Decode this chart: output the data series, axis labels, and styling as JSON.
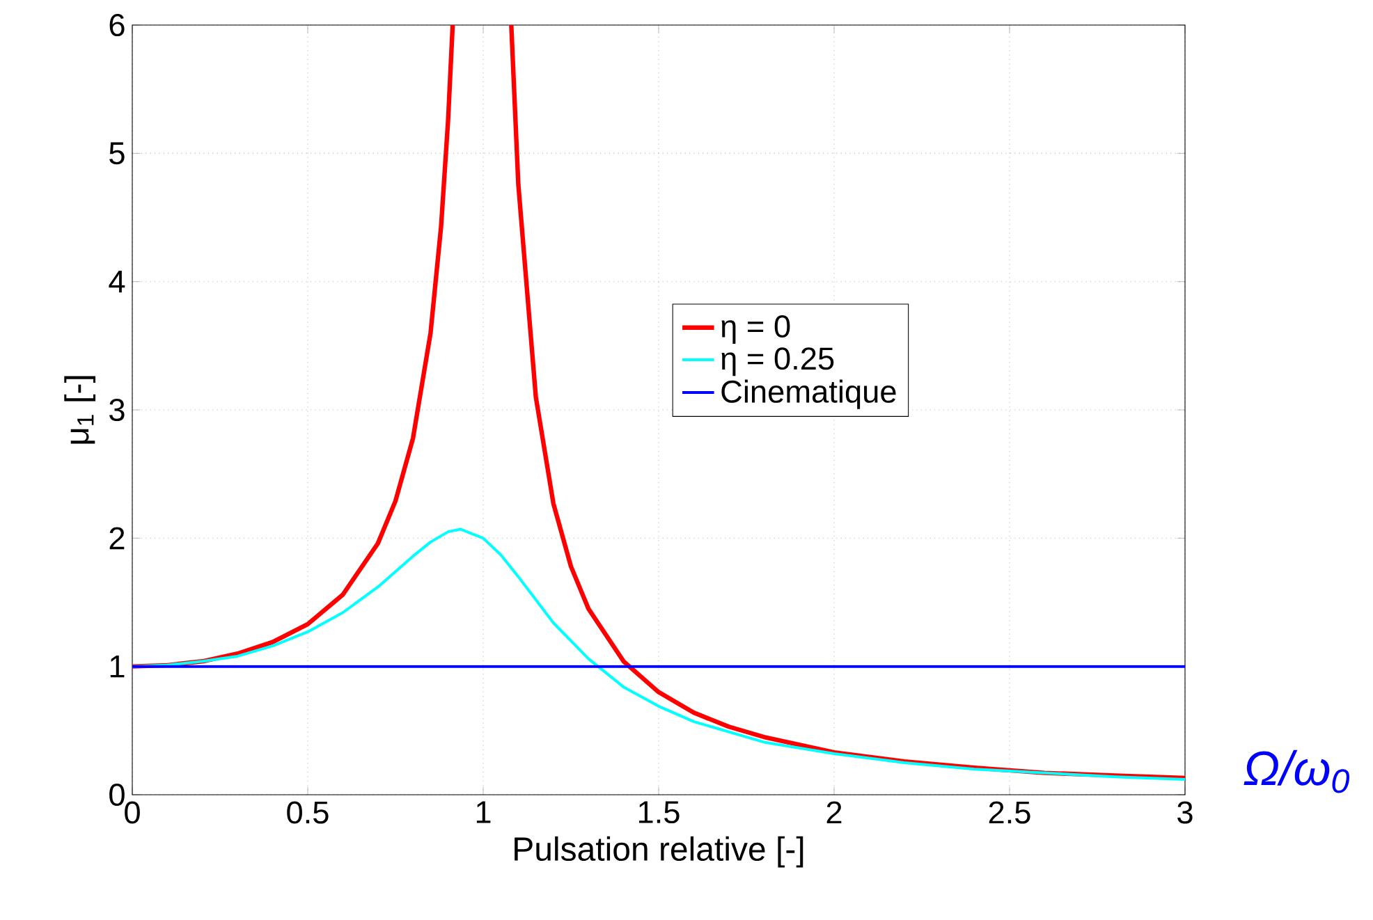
{
  "chart_data": {
    "type": "line",
    "xlabel": "Pulsation relative [-]",
    "ylabel": "μ$_{1}$ [-]",
    "xlim": [
      0,
      3
    ],
    "ylim": [
      0,
      6
    ],
    "xticks": [
      0,
      0.5,
      1,
      1.5,
      2,
      2.5,
      3
    ],
    "yticks": [
      0,
      1,
      2,
      3,
      4,
      5,
      6
    ],
    "grid": true,
    "legend": "right",
    "line_style": "solid",
    "marker": "none",
    "annotations": [
      "Ω/ω$_{0}$"
    ],
    "series": [
      {
        "name": "η = 0",
        "color": "#ff0000",
        "x": [
          0,
          0.1,
          0.2,
          0.3,
          0.4,
          0.5,
          0.6,
          0.7,
          0.75,
          0.8,
          0.85,
          0.88,
          0.9,
          0.913,
          1.0,
          1.08,
          1.1,
          1.15,
          1.2,
          1.25,
          1.3,
          1.4,
          1.5,
          1.6,
          1.7,
          1.8,
          2.0,
          2.2,
          2.4,
          2.6,
          2.8,
          3.0
        ],
        "values": [
          1,
          1.01,
          1.04,
          1.1,
          1.19,
          1.33,
          1.56,
          1.96,
          2.29,
          2.78,
          3.6,
          4.43,
          5.26,
          6,
          null,
          6,
          4.76,
          3.1,
          2.27,
          1.78,
          1.45,
          1.04,
          0.8,
          0.64,
          0.53,
          0.45,
          0.33,
          0.26,
          0.21,
          0.17,
          0.15,
          0.13
        ]
      },
      {
        "name": "η = 0.25",
        "color": "#00ffff",
        "x": [
          0,
          0.1,
          0.2,
          0.3,
          0.4,
          0.5,
          0.6,
          0.7,
          0.8,
          0.85,
          0.9,
          0.935,
          1.0,
          1.05,
          1.1,
          1.2,
          1.3,
          1.4,
          1.5,
          1.6,
          1.8,
          2.0,
          2.2,
          2.4,
          2.6,
          2.8,
          3.0
        ],
        "values": [
          1,
          1.01,
          1.04,
          1.08,
          1.16,
          1.27,
          1.42,
          1.62,
          1.86,
          1.97,
          2.05,
          2.07,
          2.0,
          1.87,
          1.7,
          1.34,
          1.06,
          0.84,
          0.69,
          0.57,
          0.41,
          0.32,
          0.25,
          0.2,
          0.17,
          0.14,
          0.12
        ]
      },
      {
        "name": "Cinematique",
        "color": "#0000ff",
        "x": [
          0,
          3
        ],
        "values": [
          1,
          1
        ]
      }
    ]
  }
}
